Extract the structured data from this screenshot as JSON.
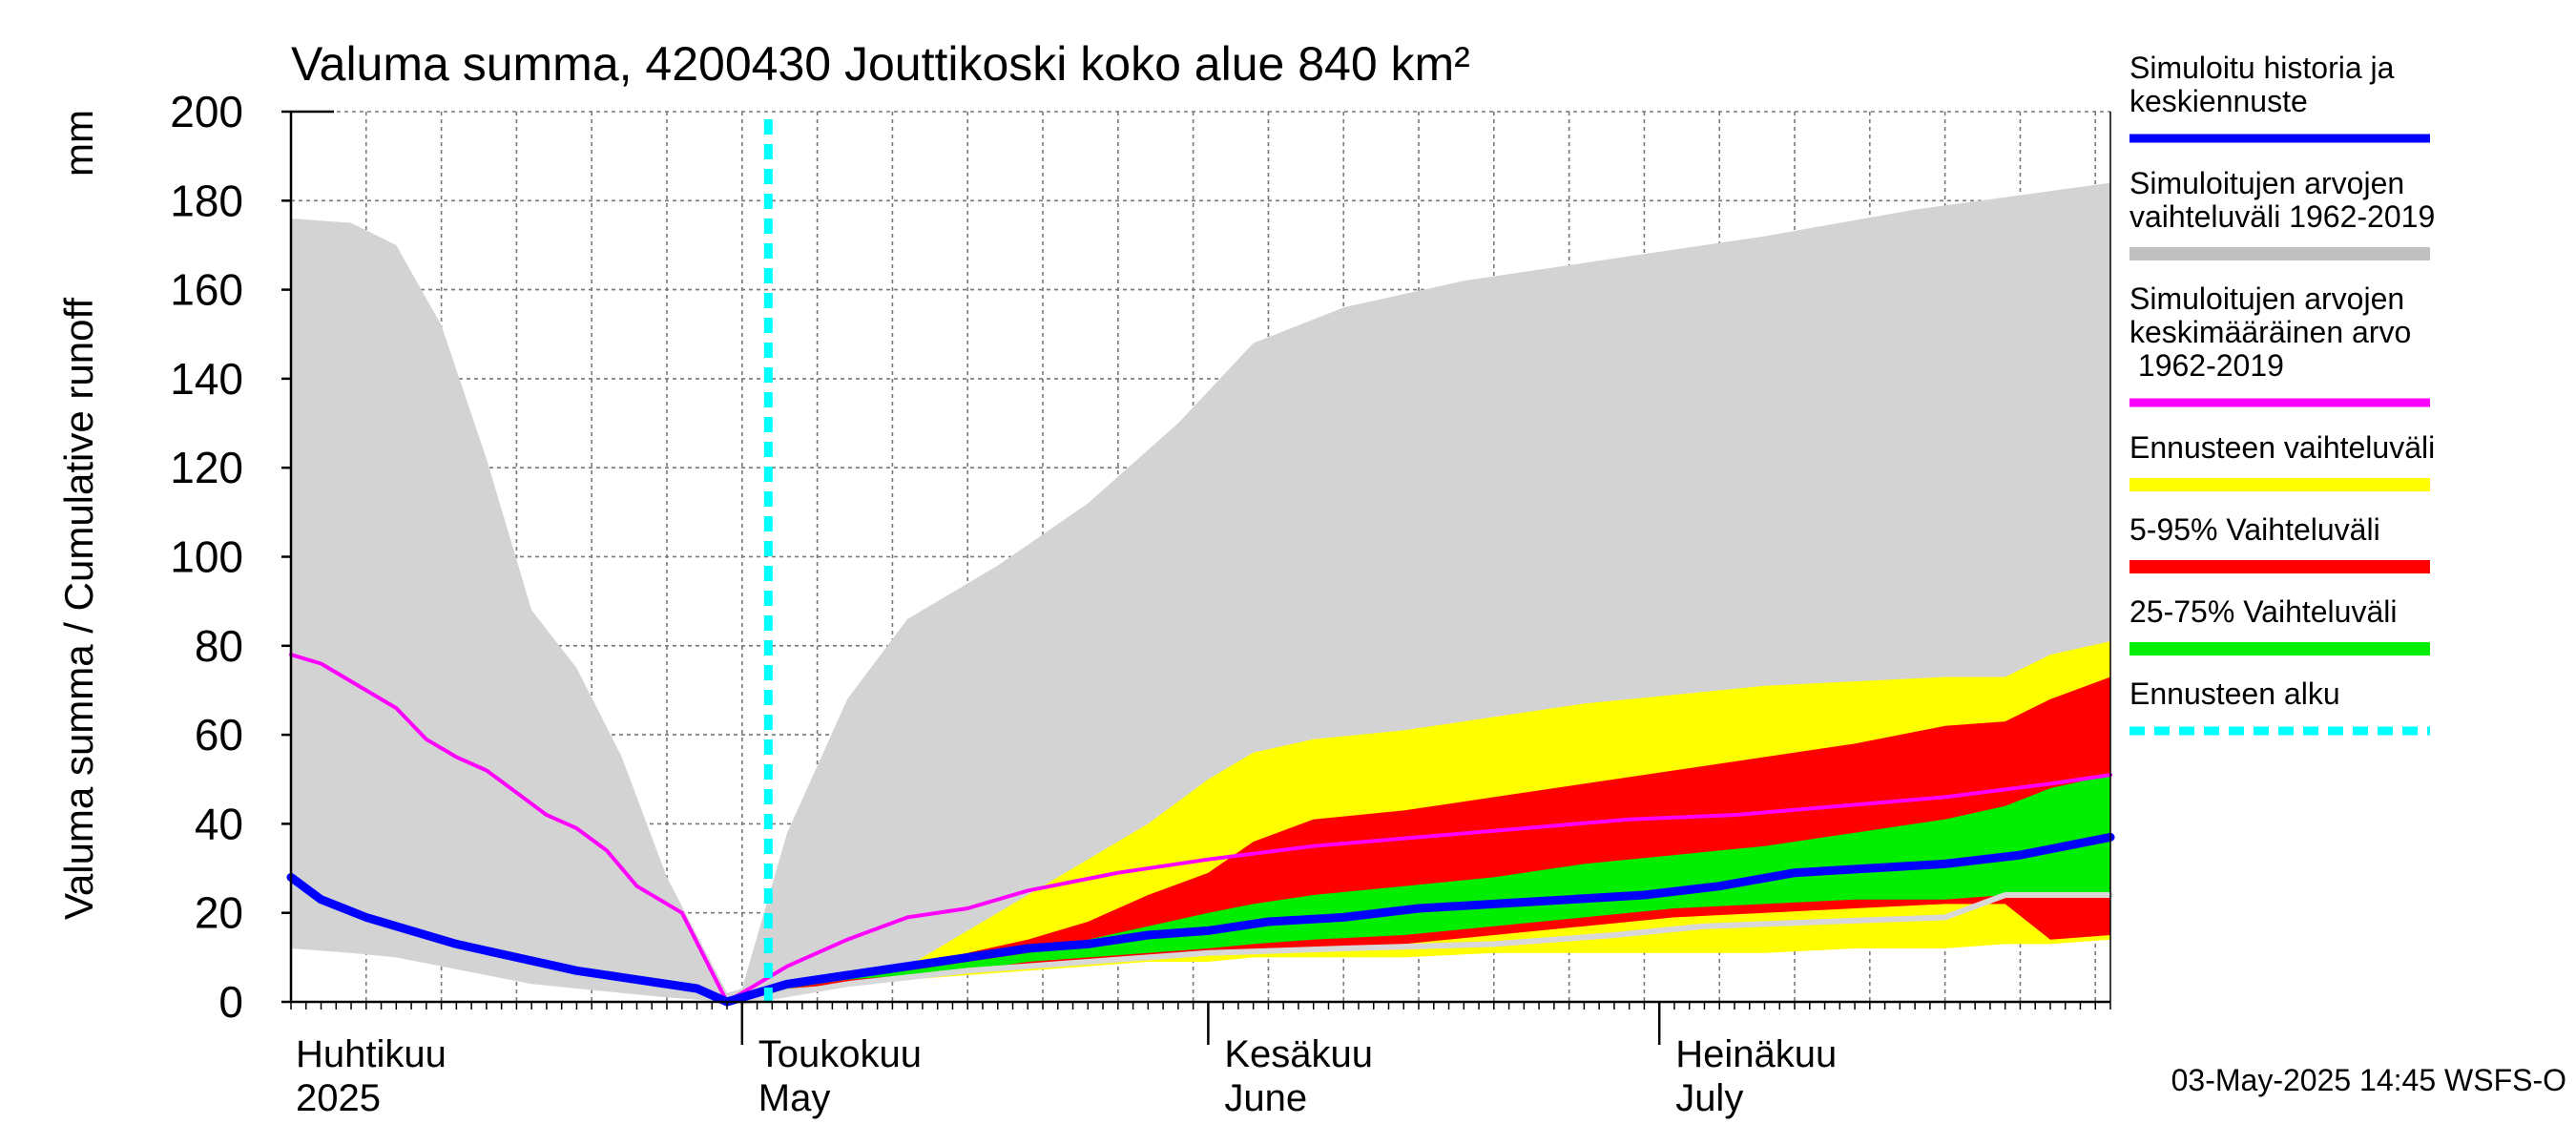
{
  "chart_data": {
    "type": "area",
    "title": "Valuma summa, 4200430 Jouttikoski koko alue 840 km²",
    "ylabel": "Valuma summa / Cumulative runoff",
    "yunit": "mm",
    "ylim": [
      0,
      200
    ],
    "yticks": [
      0,
      20,
      40,
      60,
      80,
      100,
      120,
      140,
      160,
      180,
      200
    ],
    "xlim": [
      "2025-04-01",
      "2025-07-31"
    ],
    "grid": true,
    "legend_position": "right",
    "months": [
      {
        "fi": "Huhtikuu",
        "en": "2025",
        "start": "2025-04-01"
      },
      {
        "fi": "Toukokuu",
        "en": "May",
        "start": "2025-05-01"
      },
      {
        "fi": "Kesäkuu",
        "en": "June",
        "start": "2025-06-01"
      },
      {
        "fi": "Heinäkuu",
        "en": "July",
        "start": "2025-07-01"
      }
    ],
    "forecast_start": "2025-05-03",
    "timestamp": "03-May-2025 14:45 WSFS-O",
    "legend": [
      {
        "label": "Simuloitu historia ja\nkeskiennuste",
        "color": "#0000ff",
        "kind": "line"
      },
      {
        "label": "Simuloitujen arvojen\nvaihteluväli 1962-2019",
        "color": "#c0c0c0",
        "kind": "band"
      },
      {
        "label": "Simuloitujen arvojen\nkeskimääräinen arvo\n   1962-2019",
        "color": "#ff00ff",
        "kind": "line"
      },
      {
        "label": "Ennusteen vaihteluväli",
        "color": "#ffff00",
        "kind": "band"
      },
      {
        "label": "5-95% Vaihteluväli",
        "color": "#ff0000",
        "kind": "band"
      },
      {
        "label": "25-75% Vaihteluväli",
        "color": "#00ee00",
        "kind": "band"
      },
      {
        "label": "Ennusteen alku",
        "color": "#00ffff",
        "kind": "dashed"
      }
    ],
    "series": [
      {
        "key": "hist_range",
        "color": "#d3d3d3",
        "x": [
          "2025-04-01",
          "2025-04-05",
          "2025-04-08",
          "2025-04-11",
          "2025-04-14",
          "2025-04-17",
          "2025-04-20",
          "2025-04-23",
          "2025-04-26",
          "2025-04-30",
          "2025-05-01",
          "2025-05-04",
          "2025-05-08",
          "2025-05-12",
          "2025-05-18",
          "2025-05-24",
          "2025-05-30",
          "2025-06-04",
          "2025-06-10",
          "2025-06-18",
          "2025-06-28",
          "2025-07-08",
          "2025-07-18",
          "2025-07-31"
        ],
        "upper": [
          176,
          175,
          170,
          152,
          122,
          88,
          75,
          55,
          28,
          2,
          3,
          38,
          68,
          86,
          98,
          112,
          130,
          148,
          156,
          162,
          167,
          172,
          178,
          184
        ],
        "lower": [
          12,
          11,
          10,
          8,
          6,
          4,
          3,
          2,
          1,
          0,
          0,
          2,
          4,
          6,
          8,
          9,
          10,
          11,
          11,
          12,
          12,
          12,
          13,
          14
        ]
      },
      {
        "key": "forecast_range",
        "color": "#ffff00",
        "x": [
          "2025-05-01",
          "2025-05-04",
          "2025-05-08",
          "2025-05-12",
          "2025-05-16",
          "2025-05-20",
          "2025-05-24",
          "2025-05-28",
          "2025-06-01",
          "2025-06-04",
          "2025-06-08",
          "2025-06-14",
          "2025-06-20",
          "2025-06-26",
          "2025-07-02",
          "2025-07-08",
          "2025-07-14",
          "2025-07-20",
          "2025-07-24",
          "2025-07-27",
          "2025-07-31"
        ],
        "upper": [
          0,
          4,
          6,
          8,
          16,
          24,
          32,
          40,
          50,
          56,
          59,
          61,
          64,
          67,
          69,
          71,
          72,
          73,
          73,
          78,
          81
        ],
        "lower": [
          0,
          3,
          4,
          5,
          6,
          7,
          8,
          9,
          9,
          10,
          10,
          10,
          11,
          11,
          11,
          11,
          12,
          12,
          13,
          13,
          14
        ]
      },
      {
        "key": "p5_95",
        "color": "#ff0000",
        "x": [
          "2025-05-01",
          "2025-05-04",
          "2025-05-08",
          "2025-05-12",
          "2025-05-16",
          "2025-05-20",
          "2025-05-24",
          "2025-05-28",
          "2025-06-01",
          "2025-06-04",
          "2025-06-08",
          "2025-06-14",
          "2025-06-20",
          "2025-06-26",
          "2025-07-02",
          "2025-07-08",
          "2025-07-14",
          "2025-07-20",
          "2025-07-24",
          "2025-07-27",
          "2025-07-31"
        ],
        "upper": [
          0,
          4,
          6,
          8,
          11,
          14,
          18,
          24,
          29,
          36,
          41,
          43,
          46,
          49,
          52,
          55,
          58,
          62,
          63,
          68,
          73
        ],
        "lower": [
          0,
          3,
          4,
          5,
          7,
          8,
          9,
          10,
          11,
          11,
          12,
          13,
          15,
          17,
          19,
          20,
          21,
          22,
          22,
          14,
          15
        ]
      },
      {
        "key": "p25_75",
        "color": "#00ee00",
        "x": [
          "2025-05-01",
          "2025-05-04",
          "2025-05-08",
          "2025-05-12",
          "2025-05-16",
          "2025-05-20",
          "2025-05-24",
          "2025-05-28",
          "2025-06-01",
          "2025-06-04",
          "2025-06-08",
          "2025-06-14",
          "2025-06-20",
          "2025-06-26",
          "2025-07-02",
          "2025-07-08",
          "2025-07-14",
          "2025-07-20",
          "2025-07-24",
          "2025-07-27",
          "2025-07-31"
        ],
        "upper": [
          0,
          4,
          6,
          7,
          9,
          11,
          14,
          17,
          20,
          22,
          24,
          26,
          28,
          31,
          33,
          35,
          38,
          41,
          44,
          48,
          51
        ],
        "lower": [
          0,
          3,
          5,
          6,
          7,
          9,
          10,
          11,
          12,
          13,
          14,
          15,
          17,
          19,
          21,
          22,
          23,
          23,
          24,
          24,
          24
        ]
      },
      {
        "key": "mean_1962_2019",
        "color": "#ff00ff",
        "x": [
          "2025-04-01",
          "2025-04-03",
          "2025-04-05",
          "2025-04-08",
          "2025-04-10",
          "2025-04-12",
          "2025-04-14",
          "2025-04-16",
          "2025-04-18",
          "2025-04-20",
          "2025-04-22",
          "2025-04-24",
          "2025-04-27",
          "2025-04-30",
          "2025-05-04",
          "2025-05-08",
          "2025-05-12",
          "2025-05-16",
          "2025-05-20",
          "2025-05-26",
          "2025-06-01",
          "2025-06-08",
          "2025-06-15",
          "2025-06-22",
          "2025-06-29",
          "2025-07-06",
          "2025-07-13",
          "2025-07-20",
          "2025-07-27",
          "2025-07-31"
        ],
        "values": [
          78,
          76,
          72,
          66,
          59,
          55,
          52,
          47,
          42,
          39,
          34,
          26,
          20,
          0,
          8,
          14,
          19,
          21,
          25,
          29,
          32,
          35,
          37,
          39,
          41,
          42,
          44,
          46,
          49,
          51
        ]
      },
      {
        "key": "lowest_gray",
        "color": "#d8d8d8",
        "x": [
          "2025-05-01",
          "2025-05-08",
          "2025-05-16",
          "2025-05-24",
          "2025-06-01",
          "2025-06-10",
          "2025-06-20",
          "2025-06-28",
          "2025-07-04",
          "2025-07-12",
          "2025-07-20",
          "2025-07-24",
          "2025-07-31"
        ],
        "values": [
          0,
          4,
          7,
          9,
          11,
          12,
          13,
          15,
          17,
          18,
          19,
          24,
          24
        ]
      },
      {
        "key": "median_forecast",
        "color": "#0000ff",
        "x": [
          "2025-04-01",
          "2025-04-03",
          "2025-04-06",
          "2025-04-09",
          "2025-04-12",
          "2025-04-16",
          "2025-04-20",
          "2025-04-24",
          "2025-04-28",
          "2025-04-30",
          "2025-05-04",
          "2025-05-08",
          "2025-05-12",
          "2025-05-16",
          "2025-05-20",
          "2025-05-24",
          "2025-05-28",
          "2025-06-01",
          "2025-06-05",
          "2025-06-10",
          "2025-06-15",
          "2025-06-20",
          "2025-06-25",
          "2025-06-30",
          "2025-07-05",
          "2025-07-10",
          "2025-07-15",
          "2025-07-20",
          "2025-07-25",
          "2025-07-31"
        ],
        "values": [
          28,
          23,
          19,
          16,
          13,
          10,
          7,
          5,
          3,
          0,
          4,
          6,
          8,
          10,
          12,
          13,
          15,
          16,
          18,
          19,
          21,
          22,
          23,
          24,
          26,
          29,
          30,
          31,
          33,
          37
        ]
      }
    ]
  }
}
